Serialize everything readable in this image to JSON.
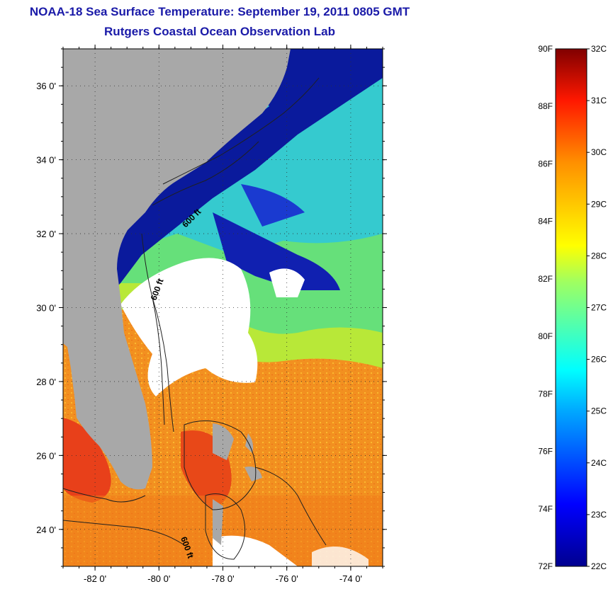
{
  "title": "NOAA-18 Sea Surface Temperature:  September 19, 2011 0805 GMT",
  "subtitle": "Rutgers Coastal Ocean Observation Lab",
  "map": {
    "lon_range": [
      -83,
      -73
    ],
    "lat_range": [
      23,
      37
    ],
    "lat_labels": [
      "24 0'",
      "26 0'",
      "28 0'",
      "30 0'",
      "32 0'",
      "34 0'",
      "36 0'"
    ],
    "lat_values": [
      24,
      26,
      28,
      30,
      32,
      34,
      36
    ],
    "lon_labels": [
      "-82 0'",
      "-80 0'",
      "-78 0'",
      "-76 0'",
      "-74 0'"
    ],
    "lon_values": [
      -82,
      -80,
      -78,
      -76,
      -74
    ],
    "contour_labels": [
      "600 ft",
      "600 ft",
      "600 ft"
    ],
    "colors": {
      "land": "#a8a8a8",
      "cloud": "#ffffff",
      "cold": "#0a1a9c",
      "warm": "#f08a18",
      "hot": "#e83a14"
    }
  },
  "colorbar": {
    "unit_min_f": 72,
    "unit_max_f": 90,
    "unit_min_c": 22,
    "unit_max_c": 32,
    "f_labels": [
      "72F",
      "74F",
      "76F",
      "78F",
      "80F",
      "82F",
      "84F",
      "86F",
      "88F",
      "90F"
    ],
    "f_values": [
      72,
      74,
      76,
      78,
      80,
      82,
      84,
      86,
      88,
      90
    ],
    "c_labels": [
      "22C",
      "23C",
      "24C",
      "25C",
      "26C",
      "27C",
      "28C",
      "29C",
      "30C",
      "31C",
      "32C"
    ],
    "c_values": [
      22,
      23,
      24,
      25,
      26,
      27,
      28,
      29,
      30,
      31,
      32
    ]
  }
}
